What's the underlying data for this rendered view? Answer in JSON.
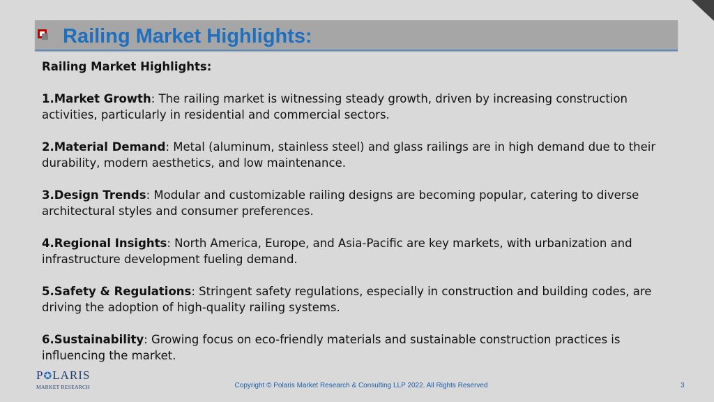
{
  "slide": {
    "title": "Railing Market Highlights:",
    "heading": "Railing Market Highlights:",
    "points": [
      {
        "label": "1.Market Growth",
        "text": ": The railing market is witnessing steady growth, driven by increasing construction activities, particularly in residential and commercial sectors."
      },
      {
        "label": "2.Material Demand",
        "text": ": Metal (aluminum, stainless steel) and glass railings are in high demand due to their durability, modern aesthetics, and low maintenance."
      },
      {
        "label": "3.Design Trends",
        "text": ": Modular and customizable railing designs are becoming popular, catering to diverse architectural styles and consumer preferences."
      },
      {
        "label": "4.Regional Insights",
        "text": ": North America, Europe, and Asia-Pacific are key markets, with urbanization and infrastructure development fueling demand."
      },
      {
        "label": "5.Safety & Regulations",
        "text": ": Stringent safety regulations, especially in construction and building codes, are driving the adoption of high-quality railing systems."
      },
      {
        "label": "6.Sustainability",
        "text": ": Growing focus on eco-friendly materials and sustainable construction practices is influencing the market."
      }
    ]
  },
  "footer": {
    "logo_name_part1": "P",
    "logo_name_part2": "LARIS",
    "logo_sub": "MARKET RESEARCH",
    "copyright": "Copyright © Polaris Market Research & Consulting LLP 2022. All Rights Reserved",
    "page_number": "3"
  },
  "colors": {
    "title": "#1f6fc1",
    "bullet": "#c00000",
    "background": "#d9d9d9",
    "footer_text": "#1f5fa8"
  }
}
